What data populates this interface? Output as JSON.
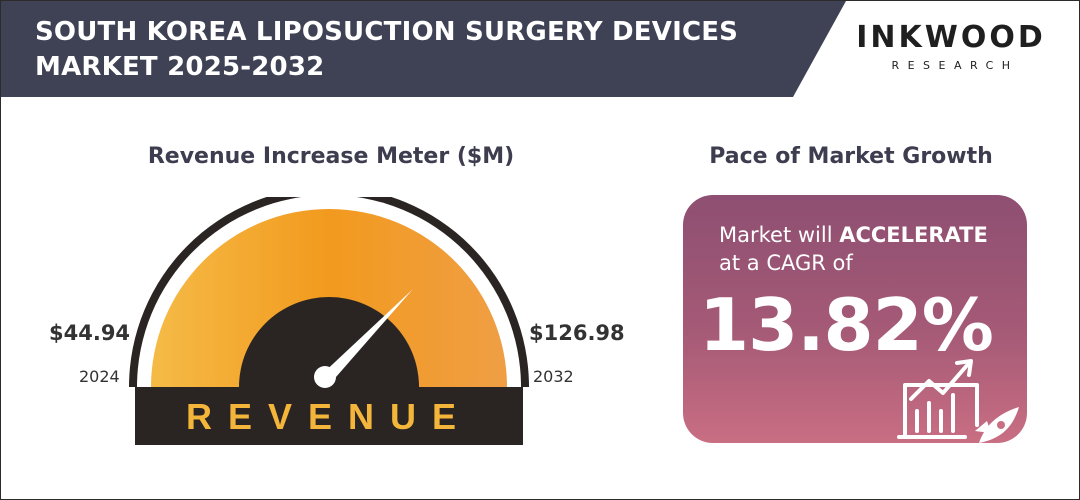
{
  "header": {
    "title_line1": "SOUTH KOREA LIPOSUCTION SURGERY DEVICES",
    "title_line2": "MARKET 2025-2032",
    "logo_main": "INKWOOD",
    "logo_sub": "RESEARCH",
    "colors": {
      "banner": "#3f4254",
      "logo_bg": "#ffffff"
    }
  },
  "meter": {
    "title": "Revenue Increase Meter ($M)",
    "label": "REVENUE",
    "start_value": "$44.94",
    "start_year": "2024",
    "end_value": "$126.98",
    "end_year": "2032",
    "colors": {
      "arc_light": "#f4b43c",
      "arc_mid": "#f29a1e",
      "base": "#2a2523",
      "label": "#f3b53a"
    }
  },
  "pace": {
    "title": "Pace of Market Growth",
    "text_prefix": "Market will ",
    "text_emphasis": "ACCELERATE",
    "text_line2": "at a CAGR of",
    "cagr": "13.82%",
    "icon": "growth-chart-rocket-icon",
    "colors": {
      "card_top": "#8e4f72",
      "card_bottom": "#c96e83"
    }
  }
}
